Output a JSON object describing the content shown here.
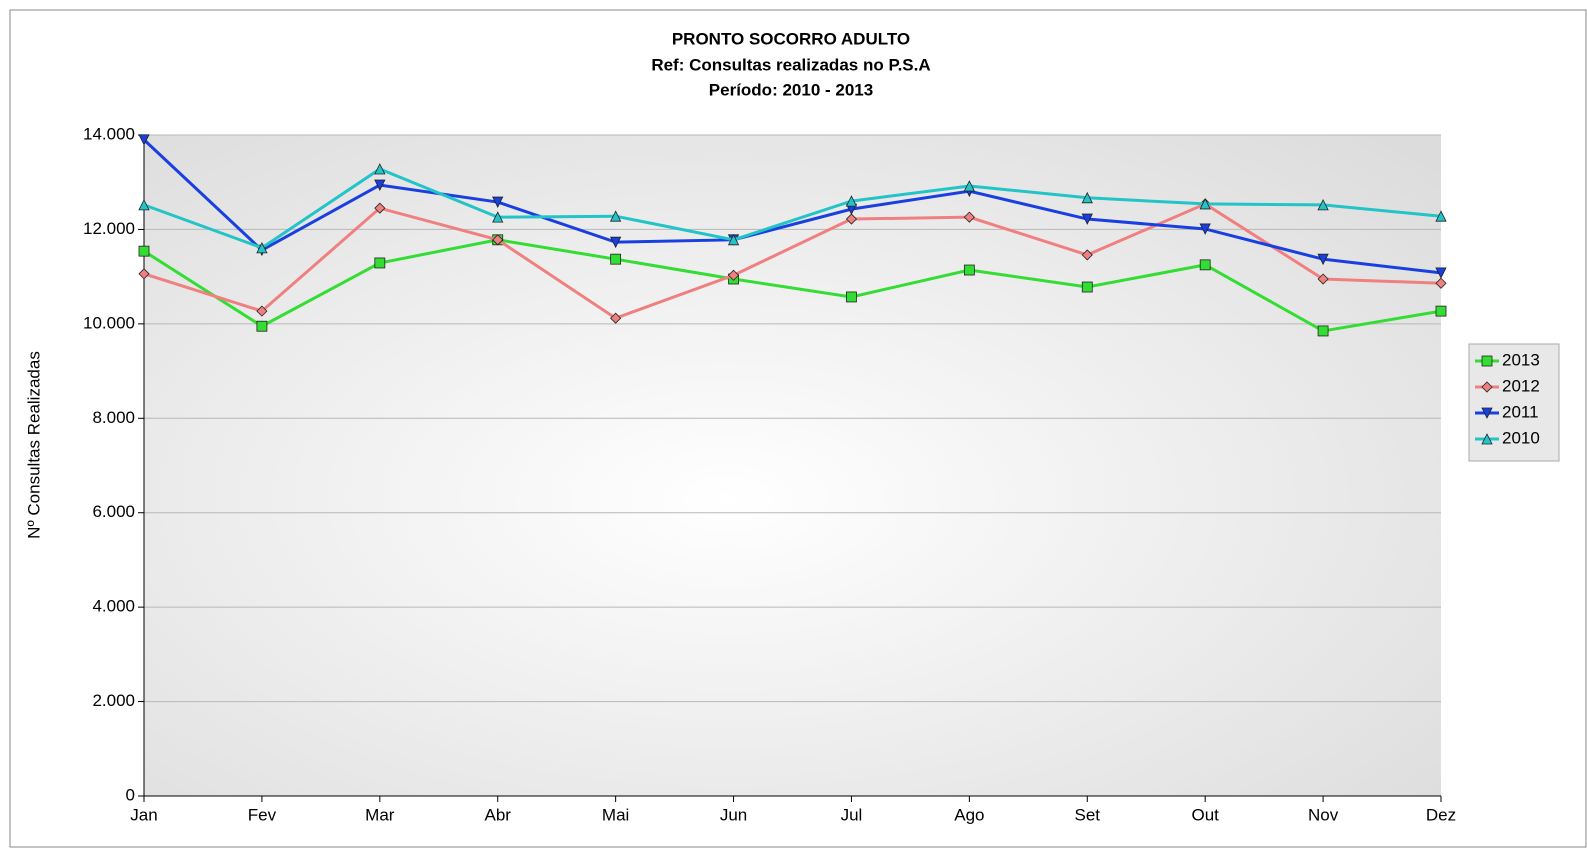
{
  "chart_data": {
    "type": "line",
    "title": "PRONTO SOCORRO ADULTO",
    "subtitle": [
      "Ref: Consultas realizadas no P.S.A",
      "Período: 2010 - 2013"
    ],
    "y_label": "Nº Consultas Realizadas",
    "categories": [
      "Jan",
      "Fev",
      "Mar",
      "Abr",
      "Mai",
      "Jun",
      "Jul",
      "Ago",
      "Set",
      "Out",
      "Nov",
      "Dez"
    ],
    "series": [
      {
        "name": "2013",
        "color": "#33dd33",
        "marker": "square",
        "values": [
          11540,
          9950,
          11290,
          11780,
          11370,
          10950,
          10570,
          11140,
          10780,
          11250,
          9850,
          10270
        ]
      },
      {
        "name": "2012",
        "color": "#f08080",
        "marker": "diamond",
        "values": [
          11060,
          10270,
          12450,
          11780,
          10120,
          11030,
          12220,
          12260,
          11460,
          12540,
          10950,
          10860
        ]
      },
      {
        "name": "2011",
        "color": "#1a3fe0",
        "marker": "triangle-down",
        "values": [
          13900,
          11560,
          12940,
          12580,
          11730,
          11780,
          12430,
          12810,
          12220,
          12010,
          11370,
          11080
        ]
      },
      {
        "name": "2010",
        "color": "#22c4c8",
        "marker": "triangle-up",
        "values": [
          12520,
          11610,
          13280,
          12260,
          12280,
          11780,
          12600,
          12920,
          12670,
          12540,
          12520,
          12280
        ]
      }
    ],
    "ylim": [
      0,
      14000
    ],
    "yticks": [
      0,
      {
        "value": 2000,
        "label": "2.000"
      },
      {
        "value": 4000,
        "label": "4.000"
      },
      {
        "value": 6000,
        "label": "6.000"
      },
      {
        "value": 8000,
        "label": "8.000"
      },
      {
        "value": 10000,
        "label": "10.000"
      },
      {
        "value": 12000,
        "label": "12.000"
      },
      {
        "value": 14000,
        "label": "14.000"
      }
    ],
    "grid": true,
    "legend": "right"
  }
}
